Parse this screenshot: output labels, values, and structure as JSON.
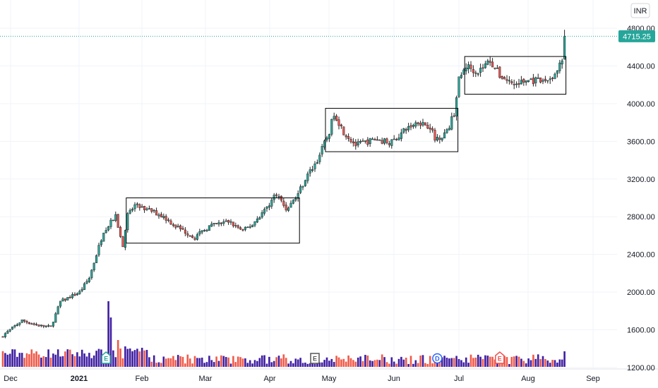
{
  "currency_button": "INR",
  "last_price_label": "4715.25",
  "colors": {
    "up": "#26a69a",
    "down": "#ef5350",
    "vol_up": "#3f1ea1",
    "vol_down": "#f05a4a",
    "grid": "#f0f3fa",
    "text": "#131722"
  },
  "chart_data": {
    "type": "candlestick",
    "ylim": [
      1170,
      4830
    ],
    "y_ticks": [
      "1200.00",
      "1600.00",
      "2000.00",
      "2400.00",
      "2800.00",
      "3200.00",
      "3600.00",
      "4000.00",
      "4400.00",
      "4800.00"
    ],
    "x_labels": [
      {
        "label": "Dec",
        "date": "2020-12-01"
      },
      {
        "label": "2021",
        "date": "2021-01-01"
      },
      {
        "label": "Feb",
        "date": "2021-02-01"
      },
      {
        "label": "Mar",
        "date": "2021-03-01"
      },
      {
        "label": "Apr",
        "date": "2021-04-01"
      },
      {
        "label": "May",
        "date": "2021-05-01"
      },
      {
        "label": "Jun",
        "date": "2021-06-01"
      },
      {
        "label": "Jul",
        "date": "2021-07-01"
      },
      {
        "label": "Aug",
        "date": "2021-08-01"
      },
      {
        "label": "Sep",
        "date": "2021-09-01"
      }
    ],
    "anchors": [
      [
        0,
        1540
      ],
      [
        8,
        1700
      ],
      [
        14,
        1650
      ],
      [
        20,
        1630
      ],
      [
        24,
        1900
      ],
      [
        32,
        2000
      ],
      [
        36,
        2150
      ],
      [
        42,
        2650
      ],
      [
        47,
        2800
      ],
      [
        50,
        2500
      ],
      [
        52,
        2820
      ],
      [
        55,
        2920
      ],
      [
        62,
        2860
      ],
      [
        67,
        2800
      ],
      [
        72,
        2700
      ],
      [
        80,
        2580
      ],
      [
        86,
        2700
      ],
      [
        94,
        2750
      ],
      [
        100,
        2650
      ],
      [
        104,
        2720
      ],
      [
        110,
        2900
      ],
      [
        114,
        3050
      ],
      [
        118,
        2880
      ],
      [
        122,
        3000
      ],
      [
        126,
        3200
      ],
      [
        131,
        3400
      ],
      [
        136,
        3700
      ],
      [
        138,
        3900
      ],
      [
        142,
        3700
      ],
      [
        147,
        3560
      ],
      [
        155,
        3620
      ],
      [
        162,
        3590
      ],
      [
        168,
        3730
      ],
      [
        173,
        3810
      ],
      [
        178,
        3760
      ],
      [
        180,
        3620
      ],
      [
        185,
        3700
      ],
      [
        188,
        3900
      ],
      [
        190,
        4250
      ],
      [
        193,
        4400
      ],
      [
        198,
        4340
      ],
      [
        203,
        4460
      ],
      [
        207,
        4300
      ],
      [
        213,
        4200
      ],
      [
        219,
        4250
      ],
      [
        225,
        4230
      ],
      [
        230,
        4300
      ],
      [
        233,
        4450
      ],
      [
        234,
        4715
      ]
    ],
    "volume_spikes": [
      [
        44,
        9.3
      ],
      [
        45,
        7.0
      ],
      [
        48,
        3.8
      ],
      [
        51,
        2.9
      ],
      [
        60,
        2.4
      ],
      [
        53,
        2.6
      ],
      [
        58,
        2.7
      ]
    ],
    "consolidation_boxes": [
      {
        "x_start": 52,
        "x_end": 123,
        "high": 3000,
        "low": 2520
      },
      {
        "x_start": 135,
        "x_end": 189,
        "high": 3950,
        "low": 3490
      },
      {
        "x_start": 193,
        "x_end": 234,
        "high": 4500,
        "low": 4100
      }
    ],
    "event_markers": [
      {
        "x": 43,
        "label": "E",
        "color": "#26a69a",
        "shape": "house"
      },
      {
        "x": 130,
        "label": "E",
        "color": "#555555",
        "shape": "square"
      },
      {
        "x": 181,
        "label": "D",
        "color": "#2962ff",
        "shape": "circle"
      },
      {
        "x": 207,
        "label": "E",
        "color": "#ef5350",
        "shape": "house"
      }
    ],
    "last_price": 4715.25
  }
}
